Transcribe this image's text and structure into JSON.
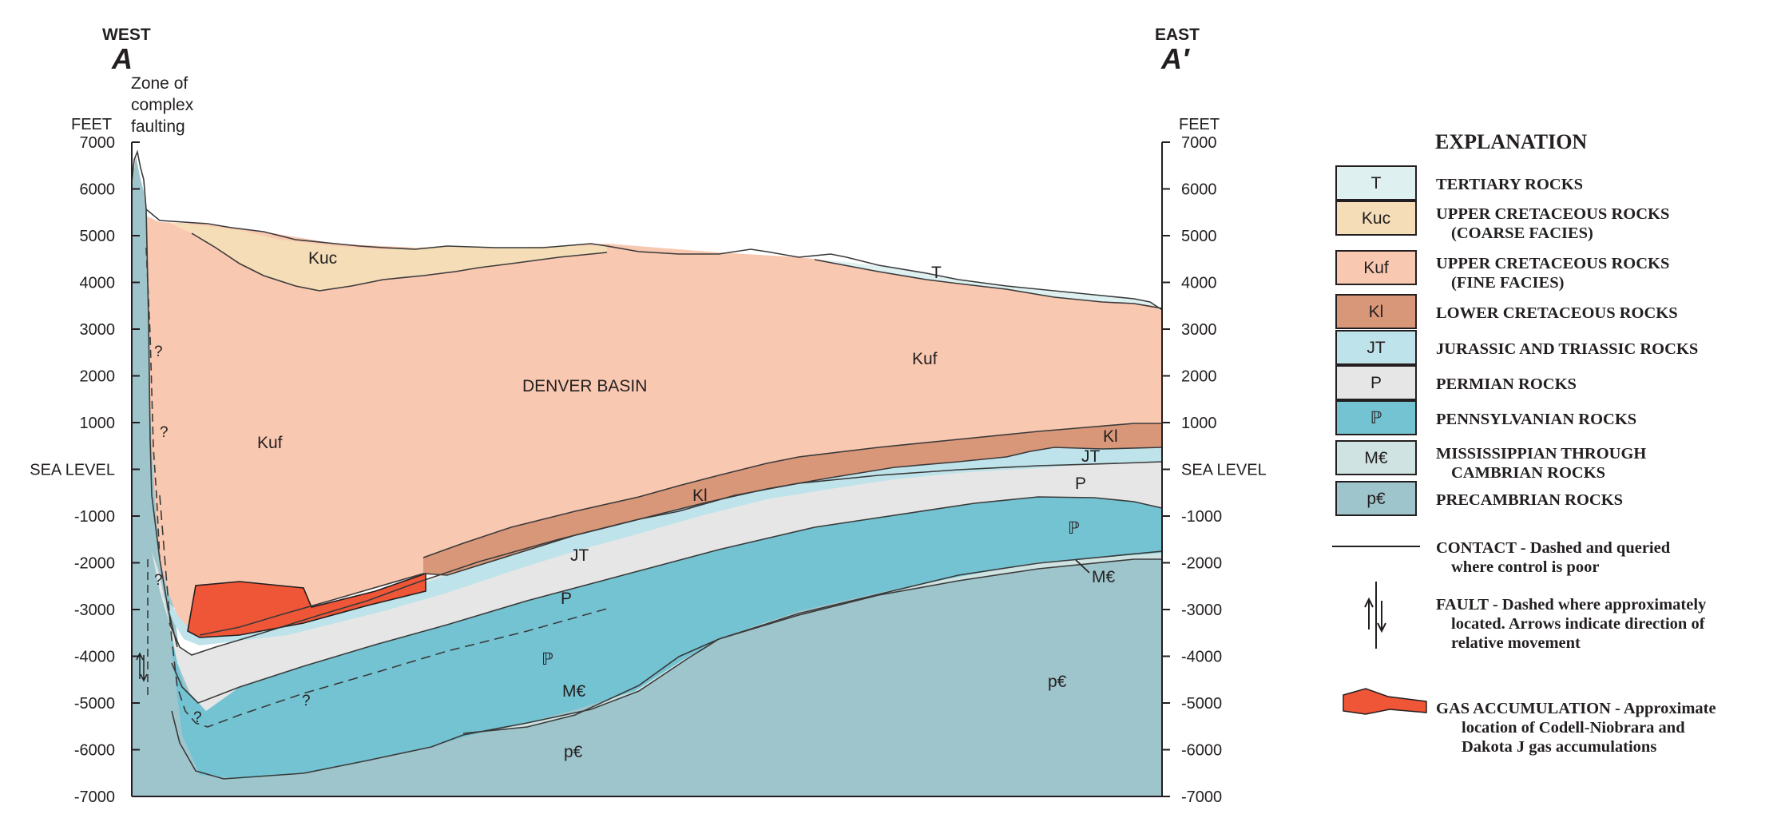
{
  "header": {
    "west_label": "WEST",
    "west_section": "A",
    "east_label": "EAST",
    "east_section": "A′",
    "fault_zone_note": [
      "Zone of",
      "complex",
      "faulting"
    ]
  },
  "axes": {
    "unit_label": "FEET",
    "ticks": [
      "7000",
      "6000",
      "5000",
      "4000",
      "3000",
      "2000",
      "1000",
      "SEA LEVEL",
      "-1000",
      "-2000",
      "-3000",
      "-4000",
      "-5000",
      "-6000",
      "-7000"
    ]
  },
  "section_labels": {
    "basin_name": "DENVER BASIN",
    "kuc": "Kuc",
    "kuf_west": "Kuf",
    "kuf_east": "Kuf",
    "t": "T",
    "kl_mid": "Kl",
    "kl_east": "Kl",
    "jt_mid": "JT",
    "jt_east": "JT",
    "p_mid": "P",
    "p_east": "P",
    "penn_mid": "ℙ",
    "penn_east": "ℙ",
    "mc_mid": "M€",
    "mc_east": "M€",
    "pc_mid": "p€",
    "pc_east": "p€",
    "query": "?"
  },
  "legend": {
    "title": "EXPLANATION",
    "units": [
      {
        "symbol": "T",
        "color": "#dff0f1",
        "lines": [
          "TERTIARY ROCKS"
        ]
      },
      {
        "symbol": "Kuc",
        "color": "#f5ddb8",
        "lines": [
          "UPPER CRETACEOUS ROCKS",
          "(COARSE FACIES)"
        ]
      },
      {
        "symbol": "Kuf",
        "color": "#f9c8b1",
        "lines": [
          "UPPER CRETACEOUS ROCKS",
          "(FINE FACIES)"
        ]
      },
      {
        "symbol": "Kl",
        "color": "#d99779",
        "lines": [
          "LOWER CRETACEOUS ROCKS"
        ]
      },
      {
        "symbol": "JT",
        "color": "#bfe3ea",
        "lines": [
          "JURASSIC AND TRIASSIC ROCKS"
        ]
      },
      {
        "symbol": "P",
        "color": "#e6e6e6",
        "lines": [
          "PERMIAN ROCKS"
        ]
      },
      {
        "symbol": "ℙ",
        "color": "#74c3d2",
        "lines": [
          "PENNSYLVANIAN ROCKS"
        ]
      },
      {
        "symbol": "M€",
        "color": "#cfe3e3",
        "lines": [
          "MISSISSIPPIAN THROUGH",
          "CAMBRIAN ROCKS"
        ]
      },
      {
        "symbol": "p€",
        "color": "#9fc5cc",
        "lines": [
          "PRECAMBRIAN ROCKS"
        ]
      }
    ],
    "contact": [
      "CONTACT - Dashed and queried",
      "where control is poor"
    ],
    "fault": [
      "FAULT - Dashed where approximately",
      "located.  Arrows indicate direction of",
      "relative movement"
    ],
    "gas": [
      "GAS ACCUMULATION - Approximate",
      "location of Codell-Niobrara and",
      "Dakota J gas accumulations"
    ]
  },
  "colors": {
    "tertiary": "#dff0f1",
    "kuc": "#f5ddb8",
    "kuf": "#f9c8b1",
    "kl": "#d99779",
    "jt": "#bfe3ea",
    "permian": "#e6e6e6",
    "penn": "#74c3d2",
    "mc": "#cfe3e3",
    "precambrian": "#9fc5cc",
    "gas": "#ef5537"
  }
}
